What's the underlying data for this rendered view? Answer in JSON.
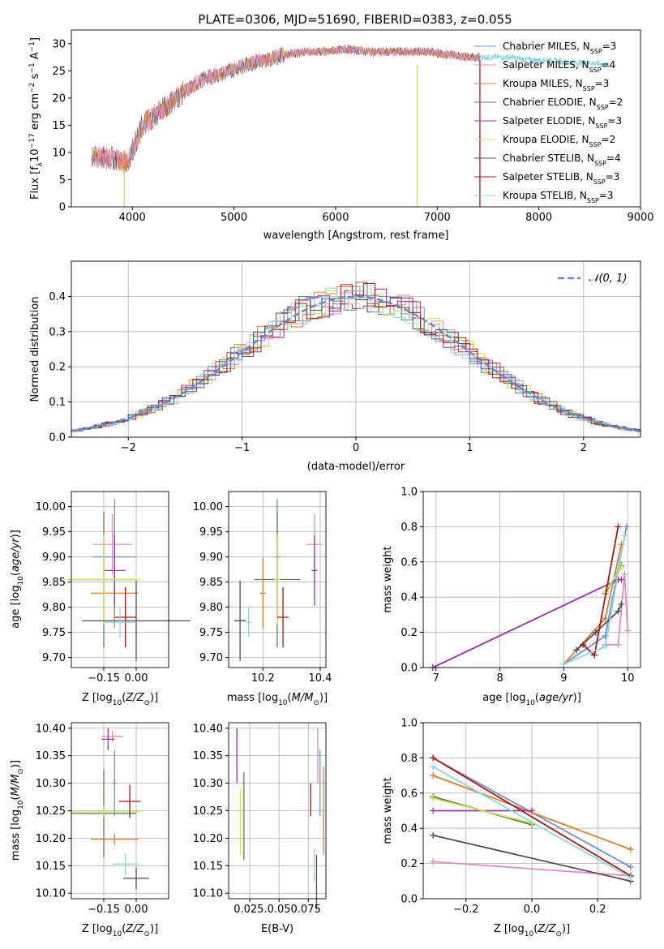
{
  "title": "PLATE=0306, MJD=51690, FIBERID=0383, z=0.055",
  "colors": {
    "Chabrier MILES": "#6a8fd8",
    "Salpeter MILES": "#e48ac0",
    "Kroupa MILES": "#e07b2a",
    "Chabrier ELODIE": "#5b7f4e",
    "Salpeter ELODIE": "#9a2fb0",
    "Kroupa ELODIE": "#c9e44f",
    "Chabrier STELIB": "#4d4d4d",
    "Salpeter STELIB": "#b01414",
    "Kroupa STELIB": "#8ad8e0"
  },
  "chart_data": [
    {
      "id": "spectrum",
      "type": "line",
      "title": "PLATE=0306, MJD=51690, FIBERID=0383, z=0.055",
      "xlabel": "wavelength [Angstrom, rest frame]",
      "ylabel": "Flux [f_λ10^-17 erg cm^-2 s^-1 A^-1]",
      "xlim": [
        3400,
        9000
      ],
      "ylim": [
        0,
        32.5
      ],
      "xticks": [
        4000,
        5000,
        6000,
        7000,
        8000,
        9000
      ],
      "yticks": [
        0,
        5,
        10,
        15,
        20,
        25,
        30
      ],
      "grid": false,
      "legend_position": "right",
      "legend": [
        "Chabrier MILES, N_SSP=3",
        "Salpeter MILES, N_SSP=4",
        "Kroupa MILES, N_SSP=3",
        "Chabrier ELODIE, N_SSP=2",
        "Salpeter ELODIE, N_SSP=3",
        "Kroupa ELODIE, N_SSP=2",
        "Chabrier STELIB, N_SSP=4",
        "Salpeter STELIB, N_SSP=3",
        "Kroupa STELIB, N_SSP=3"
      ],
      "legend_parts": [
        {
          "name": "Chabrier MILES, N",
          "n": "3"
        },
        {
          "name": "Salpeter MILES, N",
          "n": "4"
        },
        {
          "name": "Kroupa MILES, N",
          "n": "3"
        },
        {
          "name": "Chabrier ELODIE, N",
          "n": "2"
        },
        {
          "name": "Salpeter ELODIE, N",
          "n": "3"
        },
        {
          "name": "Kroupa ELODIE, N",
          "n": "2"
        },
        {
          "name": "Chabrier STELIB, N",
          "n": "4"
        },
        {
          "name": "Salpeter STELIB, N",
          "n": "3"
        },
        {
          "name": "Kroupa STELIB, N",
          "n": "3"
        }
      ],
      "approx_trend": {
        "x": [
          3600,
          3800,
          3950,
          4100,
          4300,
          4500,
          4700,
          4900,
          5100,
          5300,
          5500,
          5700,
          5900,
          6100,
          6300,
          6500,
          6700,
          6900,
          7100,
          7300,
          7500,
          7700,
          7900,
          8100,
          8300,
          8500,
          8700
        ],
        "y": [
          9,
          9,
          8,
          15,
          18,
          21,
          23.5,
          24.5,
          26,
          27,
          28,
          28.5,
          28.5,
          29,
          28.5,
          28.5,
          28.5,
          28.5,
          28,
          27.5,
          27.5,
          27.5,
          27,
          27,
          26.5,
          26.5,
          26
        ]
      },
      "spikes": [
        {
          "x": 3920,
          "ymin": 0,
          "ymax": 7,
          "series": "Kroupa ELODIE"
        },
        {
          "x": 6800,
          "ymin": 0,
          "ymax": 26,
          "series": "Kroupa ELODIE"
        },
        {
          "x": 7420,
          "ymin": 0,
          "ymax": 27,
          "series": "Salpeter STELIB"
        }
      ]
    },
    {
      "id": "residuals",
      "type": "line",
      "xlabel": "(data-model)/error",
      "ylabel": "Normed distribution",
      "xlim": [
        -2.5,
        2.5
      ],
      "ylim": [
        0,
        0.5
      ],
      "xticks": [
        -2,
        -1,
        0,
        1,
        2
      ],
      "yticks": [
        0,
        0.1,
        0.2,
        0.3,
        0.4
      ],
      "grid": true,
      "legend_position": "top-right",
      "reference_curve": "N(0,1)",
      "approx_bin_width": 0.1
    },
    {
      "id": "age-vs-Z",
      "type": "scatter",
      "xlabel": "Z [log10(Z/Z⊙)]",
      "ylabel": "age [log10(age/yr)]",
      "xlim": [
        -0.3,
        0.15
      ],
      "ylim": [
        9.68,
        10.03
      ],
      "xticks": [
        -0.15,
        0.0
      ],
      "yticks": [
        9.7,
        9.75,
        9.8,
        9.85,
        9.9,
        9.95,
        10.0
      ],
      "grid": true,
      "points": [
        {
          "series": "Chabrier MILES",
          "x": -0.1,
          "xerr": 0.1,
          "y": 9.9,
          "yerr": 0.115
        },
        {
          "series": "Salpeter MILES",
          "x": -0.11,
          "xerr": 0.09,
          "y": 9.925,
          "yerr": 0.06
        },
        {
          "series": "Kroupa MILES",
          "x": -0.1,
          "xerr": 0.11,
          "y": 9.828,
          "yerr": 0.07
        },
        {
          "series": "Chabrier ELODIE",
          "x": -0.15,
          "xerr": 0.15,
          "y": 9.855,
          "yerr": 0.135
        },
        {
          "series": "Salpeter ELODIE",
          "x": -0.1,
          "xerr": 0.05,
          "y": 9.873,
          "yerr": 0.07
        },
        {
          "series": "Kroupa ELODIE",
          "x": -0.15,
          "xerr": 0.17,
          "y": 9.855,
          "yerr": 0.09
        },
        {
          "series": "Chabrier STELIB",
          "x": 0.0,
          "xerr": 0.25,
          "y": 9.773,
          "yerr": 0.08
        },
        {
          "series": "Salpeter STELIB",
          "x": -0.05,
          "xerr": 0.05,
          "y": 9.78,
          "yerr": 0.06
        },
        {
          "series": "Kroupa STELIB",
          "x": -0.075,
          "xerr": 0.07,
          "y": 9.77,
          "yerr": 0.03
        }
      ]
    },
    {
      "id": "age-vs-mass",
      "type": "scatter",
      "xlabel": "mass [log10(M/M⊙)]",
      "ylabel": "",
      "xlim": [
        10.08,
        10.42
      ],
      "ylim": [
        9.68,
        10.03
      ],
      "xticks": [
        10.2,
        10.4
      ],
      "yticks": [
        9.7,
        9.75,
        9.8,
        9.85,
        9.9,
        9.95,
        10.0
      ],
      "grid": true,
      "points": [
        {
          "series": "Chabrier MILES",
          "x": 10.25,
          "xerr": 0.01,
          "y": 9.9,
          "yerr": 0.115
        },
        {
          "series": "Salpeter MILES",
          "x": 10.38,
          "xerr": 0.03,
          "y": 9.925,
          "yerr": 0.06
        },
        {
          "series": "Kroupa MILES",
          "x": 10.2,
          "xerr": 0.01,
          "y": 9.828,
          "yerr": 0.07
        },
        {
          "series": "Chabrier ELODIE",
          "x": 10.25,
          "xerr": 0.08,
          "y": 9.855,
          "yerr": 0.135
        },
        {
          "series": "Salpeter ELODIE",
          "x": 10.38,
          "xerr": 0.01,
          "y": 9.873,
          "yerr": 0.07
        },
        {
          "series": "Kroupa ELODIE",
          "x": 10.25,
          "xerr": 0.01,
          "y": 9.855,
          "yerr": 0.09
        },
        {
          "series": "Chabrier STELIB",
          "x": 10.12,
          "xerr": 0.02,
          "y": 9.773,
          "yerr": 0.08
        },
        {
          "series": "Salpeter STELIB",
          "x": 10.27,
          "xerr": 0.02,
          "y": 9.78,
          "yerr": 0.06
        },
        {
          "series": "Kroupa STELIB",
          "x": 10.15,
          "xerr": 0.01,
          "y": 9.77,
          "yerr": 0.03
        }
      ]
    },
    {
      "id": "weight-vs-age",
      "type": "line",
      "xlabel": "age [log10(age/yr)]",
      "ylabel": "mass weight",
      "xlim": [
        6.8,
        10.2
      ],
      "ylim": [
        0,
        1.0
      ],
      "xticks": [
        7,
        8,
        9,
        10
      ],
      "yticks": [
        0,
        0.2,
        0.4,
        0.6,
        0.8,
        1.0
      ],
      "grid": true,
      "series": [
        {
          "name": "Chabrier MILES",
          "x": [
            9.0,
            9.65,
            9.98
          ],
          "y": [
            0.02,
            0.18,
            0.8
          ]
        },
        {
          "name": "Salpeter MILES",
          "x": [
            9.65,
            9.85,
            9.95,
            10.0
          ],
          "y": [
            0.13,
            0.13,
            0.53,
            0.21
          ]
        },
        {
          "name": "Kroupa MILES",
          "x": [
            9.0,
            9.65,
            9.9
          ],
          "y": [
            0.02,
            0.28,
            0.7
          ]
        },
        {
          "name": "Chabrier ELODIE",
          "x": [
            9.65,
            9.9
          ],
          "y": [
            0.42,
            0.58
          ]
        },
        {
          "name": "Salpeter ELODIE",
          "x": [
            6.95,
            9.85,
            9.9
          ],
          "y": [
            0.0,
            0.5,
            0.5
          ]
        },
        {
          "name": "Kroupa ELODIE",
          "x": [
            9.65,
            9.9
          ],
          "y": [
            0.43,
            0.57
          ]
        },
        {
          "name": "Chabrier STELIB",
          "x": [
            9.2,
            9.5,
            9.85,
            9.9
          ],
          "y": [
            0.1,
            0.2,
            0.32,
            0.36
          ]
        },
        {
          "name": "Salpeter STELIB",
          "x": [
            9.3,
            9.48,
            9.85
          ],
          "y": [
            0.13,
            0.07,
            0.8
          ]
        },
        {
          "name": "Kroupa STELIB",
          "x": [
            9.0,
            9.65,
            9.95
          ],
          "y": [
            0.02,
            0.12,
            0.75
          ]
        }
      ]
    },
    {
      "id": "mass-vs-Z",
      "type": "scatter",
      "xlabel": "Z [log10(Z/Z⊙)]",
      "ylabel": "mass [log10(M/M⊙)]",
      "xlim": [
        -0.3,
        0.15
      ],
      "ylim": [
        10.09,
        10.41
      ],
      "xticks": [
        -0.15,
        0.0
      ],
      "yticks": [
        10.1,
        10.15,
        10.2,
        10.25,
        10.3,
        10.35,
        10.4
      ],
      "grid": true,
      "points": [
        {
          "series": "Chabrier MILES",
          "x": -0.1,
          "xerr": 0.01,
          "y": 10.3,
          "yerr": 0.06
        },
        {
          "series": "Salpeter MILES",
          "x": -0.11,
          "xerr": 0.05,
          "y": 10.385,
          "yerr": 0.01
        },
        {
          "series": "Kroupa MILES",
          "x": -0.1,
          "xerr": 0.11,
          "y": 10.198,
          "yerr": 0.01
        },
        {
          "series": "Chabrier ELODIE",
          "x": -0.15,
          "xerr": 0.15,
          "y": 10.245,
          "yerr": 0.08
        },
        {
          "series": "Salpeter ELODIE",
          "x": -0.13,
          "xerr": 0.03,
          "y": 10.38,
          "yerr": 0.02
        },
        {
          "series": "Kroupa ELODIE",
          "x": -0.15,
          "xerr": 0.17,
          "y": 10.248,
          "yerr": 0.01
        },
        {
          "series": "Chabrier STELIB",
          "x": 0.0,
          "xerr": 0.06,
          "y": 10.127,
          "yerr": 0.02
        },
        {
          "series": "Salpeter STELIB",
          "x": -0.03,
          "xerr": 0.05,
          "y": 10.267,
          "yerr": 0.03
        },
        {
          "series": "Kroupa STELIB",
          "x": -0.05,
          "xerr": 0.06,
          "y": 10.153,
          "yerr": 0.02
        }
      ]
    },
    {
      "id": "mass-vs-EBV",
      "type": "scatter",
      "xlabel": "E(B-V)",
      "ylabel": "",
      "xlim": [
        0.007,
        0.09
      ],
      "ylim": [
        10.09,
        10.41
      ],
      "xticks": [
        0.025,
        0.05,
        0.075
      ],
      "xtick_text": "0.025.0.050.075",
      "yticks": [
        10.1,
        10.15,
        10.2,
        10.25,
        10.3,
        10.35,
        10.4
      ],
      "grid": true,
      "points": [
        {
          "series": "Chabrier MILES",
          "x": 0.085,
          "y": 10.3,
          "yerr": 0.06
        },
        {
          "series": "Salpeter MILES",
          "x": 0.083,
          "y": 10.35,
          "yerr": 0.05
        },
        {
          "series": "Kroupa MILES",
          "x": 0.088,
          "y": 10.25,
          "yerr": 0.08
        },
        {
          "series": "Chabrier ELODIE",
          "x": 0.02,
          "y": 10.24,
          "yerr": 0.08
        },
        {
          "series": "Salpeter ELODIE",
          "x": 0.014,
          "y": 10.35,
          "yerr": 0.05
        },
        {
          "series": "Kroupa ELODIE",
          "x": 0.017,
          "y": 10.23,
          "yerr": 0.06
        },
        {
          "series": "Chabrier STELIB",
          "x": 0.082,
          "y": 10.12,
          "yerr": 0.05
        },
        {
          "series": "Salpeter STELIB",
          "x": 0.077,
          "y": 10.27,
          "yerr": 0.03
        },
        {
          "series": "Kroupa STELIB",
          "x": 0.08,
          "y": 10.15,
          "yerr": 0.03
        }
      ]
    },
    {
      "id": "weight-vs-Z",
      "type": "line",
      "xlabel": "Z [log10(Z/Z⊙)]",
      "ylabel": "mass weight",
      "xlim": [
        -0.33,
        0.33
      ],
      "ylim": [
        0,
        1.0
      ],
      "xticks": [
        -0.2,
        0.0,
        0.2
      ],
      "yticks": [
        0,
        0.2,
        0.4,
        0.6,
        0.8,
        1.0
      ],
      "grid": true,
      "series": [
        {
          "name": "Chabrier MILES",
          "x": [
            -0.3,
            0.3
          ],
          "y": [
            0.8,
            0.18
          ]
        },
        {
          "name": "Salpeter MILES",
          "x": [
            -0.3,
            0.3
          ],
          "y": [
            0.21,
            0.13
          ]
        },
        {
          "name": "Kroupa MILES",
          "x": [
            -0.3,
            0.3
          ],
          "y": [
            0.7,
            0.28
          ]
        },
        {
          "name": "Chabrier ELODIE",
          "x": [
            -0.3,
            0.0
          ],
          "y": [
            0.58,
            0.42
          ]
        },
        {
          "name": "Salpeter ELODIE",
          "x": [
            -0.3,
            0.0
          ],
          "y": [
            0.5,
            0.5
          ]
        },
        {
          "name": "Kroupa ELODIE",
          "x": [
            -0.3,
            0.0
          ],
          "y": [
            0.57,
            0.43
          ]
        },
        {
          "name": "Chabrier STELIB",
          "x": [
            -0.3,
            0.3
          ],
          "y": [
            0.36,
            0.1
          ]
        },
        {
          "name": "Salpeter STELIB",
          "x": [
            -0.3,
            0.3
          ],
          "y": [
            0.8,
            0.13
          ]
        },
        {
          "name": "Kroupa STELIB",
          "x": [
            -0.3,
            0.3
          ],
          "y": [
            0.75,
            0.12
          ]
        }
      ]
    }
  ]
}
